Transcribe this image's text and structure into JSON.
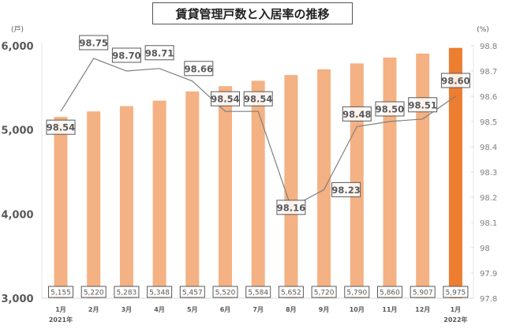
{
  "chart_data": {
    "type": "bar+line",
    "title": "賃貸管理戸数と入居率の推移",
    "categories": [
      "1月",
      "2月",
      "3月",
      "4月",
      "5月",
      "6月",
      "7月",
      "8月",
      "9月",
      "10月",
      "11月",
      "12月",
      "1月"
    ],
    "year_labels": [
      {
        "index": 0,
        "label": "2021年"
      },
      {
        "index": 12,
        "label": "2022年"
      }
    ],
    "series": [
      {
        "name": "賃貸管理戸数",
        "type": "bar",
        "axis": "left",
        "values": [
          5155,
          5220,
          5283,
          5348,
          5457,
          5520,
          5584,
          5652,
          5720,
          5790,
          5860,
          5907,
          5975
        ],
        "labels": [
          "5,155",
          "5,220",
          "5,283",
          "5,348",
          "5,457",
          "5,520",
          "5,584",
          "5,652",
          "5,720",
          "5,790",
          "5,860",
          "5,907",
          "5,975"
        ]
      },
      {
        "name": "入居率",
        "type": "line",
        "axis": "right",
        "values": [
          98.54,
          98.75,
          98.7,
          98.71,
          98.66,
          98.54,
          98.54,
          98.16,
          98.23,
          98.48,
          98.5,
          98.51,
          98.6
        ],
        "labels": [
          "98.54",
          "98.75",
          "98.70",
          "98.71",
          "98.66",
          "98.54",
          "98.54",
          "98.16",
          "98.23",
          "98.48",
          "98.50",
          "98.51",
          "98.60"
        ]
      }
    ],
    "left_axis": {
      "unit": "(戸)",
      "ylim": [
        3000,
        6000
      ],
      "ticks": [
        "3,000",
        "4,000",
        "5,000",
        "6,000"
      ],
      "tick_values": [
        3000,
        4000,
        5000,
        6000
      ]
    },
    "right_axis": {
      "unit": "(%)",
      "ylim": [
        97.8,
        98.8
      ],
      "ticks": [
        "97.8",
        "97.9",
        "98",
        "98.1",
        "98.2",
        "98.3",
        "98.4",
        "98.5",
        "98.6",
        "98.7",
        "98.8"
      ],
      "tick_values": [
        97.8,
        97.9,
        98.0,
        98.1,
        98.2,
        98.3,
        98.4,
        98.5,
        98.6,
        98.7,
        98.8
      ]
    },
    "colors": {
      "bar": "#f4b183",
      "bar_highlight": "#ed7d31",
      "line": "#7f7f7f",
      "text": "#595959",
      "label_border": "#595959"
    },
    "grid": false,
    "legend": "none"
  }
}
